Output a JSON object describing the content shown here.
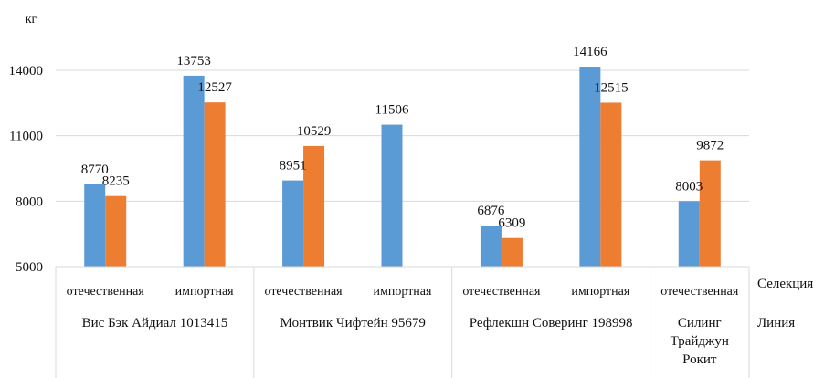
{
  "chart_data": {
    "type": "bar",
    "unit_label": "кг",
    "y_ticks": [
      5000,
      8000,
      11000,
      14000
    ],
    "ylim": [
      5000,
      15000
    ],
    "grid": true,
    "row_labels": {
      "selection": "Селекция",
      "line": "Линия"
    },
    "groups": [
      {
        "line": "Вис Бэк Айдиал 1013415",
        "categories": [
          {
            "selection": "отечественная",
            "values": [
              8770,
              8235
            ]
          },
          {
            "selection": "импортная",
            "values": [
              13753,
              12527
            ]
          }
        ]
      },
      {
        "line": "Монтвик Чифтейн 95679",
        "categories": [
          {
            "selection": "отечественная",
            "values": [
              8951,
              10529
            ]
          },
          {
            "selection": "импортная",
            "values": [
              11506,
              null
            ]
          }
        ]
      },
      {
        "line": "Рефлекшн Соверинг 198998",
        "categories": [
          {
            "selection": "отечественная",
            "values": [
              6876,
              6309
            ]
          },
          {
            "selection": "импортная",
            "values": [
              14166,
              12515
            ]
          }
        ]
      },
      {
        "line": "Силинг Трайджун Рокит",
        "line_lines": [
          "Силинг",
          "Трайджун",
          "Рокит"
        ],
        "categories": [
          {
            "selection": "отечественная",
            "values": [
              8003,
              9872
            ]
          }
        ]
      }
    ],
    "colors": [
      "#5B9BD5",
      "#ED7D31"
    ]
  }
}
